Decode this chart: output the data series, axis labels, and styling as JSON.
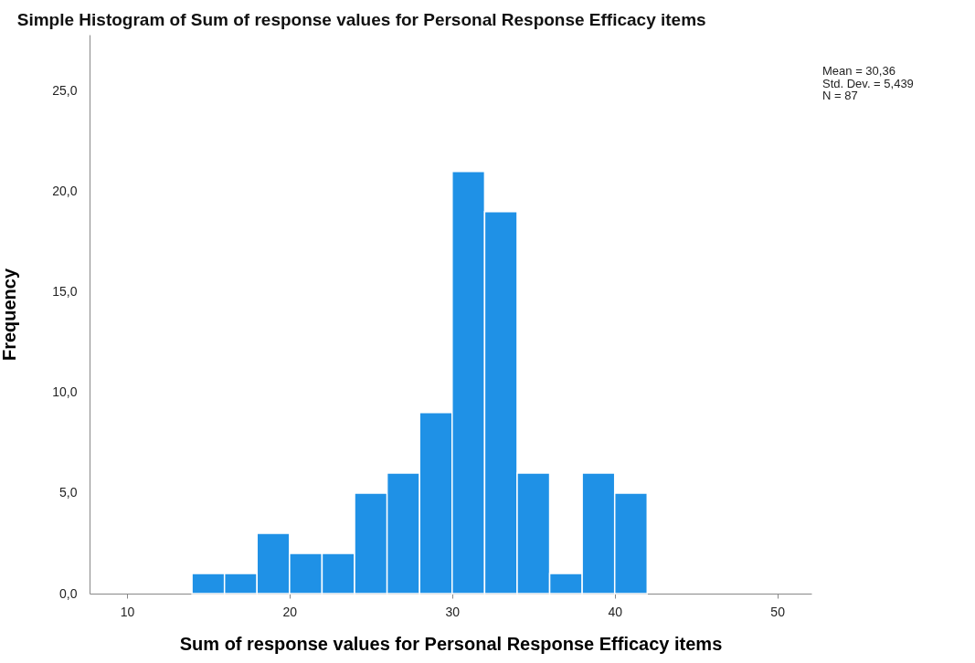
{
  "chart_data": {
    "type": "histogram",
    "title": "Simple Histogram of Sum of response values for Personal Response Efficacy items",
    "xlabel": "Sum of response values for Personal Response Efficacy items",
    "ylabel": "Frequency",
    "bins": [
      14,
      16,
      18,
      20,
      22,
      24,
      26,
      28,
      30,
      32,
      34,
      36,
      38,
      40,
      42
    ],
    "values": [
      1,
      1,
      3,
      2,
      2,
      5,
      6,
      9,
      21,
      19,
      6,
      1,
      6,
      5
    ],
    "color": "#1f91e6",
    "xlim": [
      7.7,
      52.1
    ],
    "xticks": [
      10,
      20,
      30,
      40,
      50
    ],
    "ylim": [
      0,
      27.8
    ],
    "yticks": [
      {
        "value": 0,
        "label": "0,0"
      },
      {
        "value": 5,
        "label": "5,0"
      },
      {
        "value": 10,
        "label": "10,0"
      },
      {
        "value": 15,
        "label": "15,0"
      },
      {
        "value": 20,
        "label": "20,0"
      },
      {
        "value": 25,
        "label": "25,0"
      }
    ],
    "grid": false,
    "annotations": [
      "Mean = 30,36",
      "Std. Dev. = 5,439",
      "N = 87"
    ]
  }
}
